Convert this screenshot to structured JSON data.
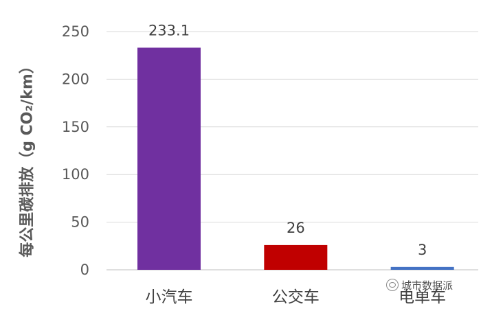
{
  "chart_data": {
    "type": "bar",
    "categories": [
      "小汽车",
      "公交车",
      "电单车"
    ],
    "values": [
      233.1,
      26,
      3
    ],
    "value_labels": [
      "233.1",
      "26",
      "3"
    ],
    "title": "",
    "xlabel": "",
    "ylabel": "每公里碳排放（g CO₂/km）",
    "ylim": [
      0,
      250
    ],
    "yticks": [
      0,
      50,
      100,
      150,
      200,
      250
    ],
    "grid": true,
    "legend": "none",
    "colors": [
      "#7030a0",
      "#c00000",
      "#4472c4"
    ]
  },
  "watermark": {
    "text": "城市数据派",
    "icon": "wechat-icon"
  }
}
